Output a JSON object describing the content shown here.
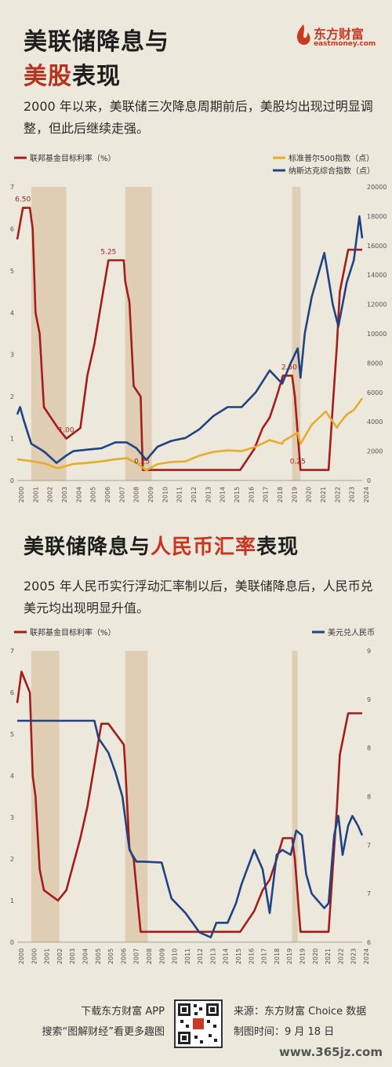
{
  "header": {
    "title_line1": "美联储降息与",
    "title_line2_red": "美股",
    "title_line2_rest": "表现",
    "brand_cn": "东方财富",
    "brand_en": "eastmoney.com",
    "brand_color": "#c83a24"
  },
  "section1": {
    "lead": "2000 年以来，美联储三次降息周期前后，美股均出现过明显调整，但此后继续走强。"
  },
  "section2": {
    "title_black1": "美联储降息与",
    "title_red": "人民币汇率",
    "title_black2": "表现",
    "lead": "2005 年人民币实行浮动汇率制以后，美联储降息后，人民币兑美元均出现明显升值。"
  },
  "footer": {
    "left1": "下载东方财富 APP",
    "left2": "搜索“图解财经”看更多趣图",
    "right1": "来源：东方财富 Choice 数据",
    "right2": "制图时间：9 月 18 日",
    "watermark": "www.365jz.com"
  },
  "chart_data": [
    {
      "type": "line",
      "colors": {
        "rate": "#a41c1c",
        "sp500": "#e4ad2c",
        "nasdaq": "#1f4383",
        "shade": "#d9c6a7"
      },
      "legend": {
        "left": "联邦基金目标利率（%）",
        "right1": "标准普尔500指数（点）",
        "right2": "纳斯达克综合指数（点）"
      },
      "x_ticks": [
        "2000",
        "2001",
        "2002",
        "2003",
        "2004",
        "2005",
        "2006",
        "2007",
        "2008",
        "2009",
        "2010",
        "2011",
        "2012",
        "2013",
        "2014",
        "2015",
        "2016",
        "2017",
        "2018",
        "2019",
        "2020",
        "2021",
        "2022",
        "2023",
        "2024"
      ],
      "y_left_ticks": [
        "0",
        "1",
        "2",
        "3",
        "4",
        "5",
        "6",
        "7"
      ],
      "y_right_ticks": [
        "0",
        "2000",
        "4000",
        "6000",
        "8000",
        "10000",
        "12000",
        "14000",
        "16000",
        "18000",
        "20000"
      ],
      "ylim_left": [
        0,
        7
      ],
      "ylim_right": [
        0,
        20000
      ],
      "shaded_periods": [
        [
          2001.0,
          2003.5
        ],
        [
          2007.7,
          2009.6
        ],
        [
          2019.6,
          2020.2
        ]
      ],
      "annotations": [
        {
          "x": 2000.4,
          "y": 6.5,
          "text": "6.50"
        },
        {
          "x": 2006.5,
          "y": 5.25,
          "text": "5.25"
        },
        {
          "x": 2003.5,
          "y": 1.0,
          "text": "1.00"
        },
        {
          "x": 2008.9,
          "y": 0.25,
          "text": "0.25"
        },
        {
          "x": 2019.4,
          "y": 2.5,
          "text": "2.50"
        },
        {
          "x": 2020.0,
          "y": 0.25,
          "text": "0.25"
        }
      ],
      "series": [
        {
          "name": "联邦基金目标利率（%）",
          "axis": "left",
          "x": [
            2000.0,
            2000.4,
            2000.9,
            2001.1,
            2001.3,
            2001.6,
            2001.9,
            2002.9,
            2003.5,
            2004.5,
            2005.0,
            2005.5,
            2006.0,
            2006.5,
            2007.6,
            2007.7,
            2008.0,
            2008.3,
            2008.8,
            2008.95,
            2015.9,
            2016.9,
            2017.5,
            2018.0,
            2018.5,
            2018.95,
            2019.6,
            2019.8,
            2020.2,
            2022.2,
            2022.5,
            2022.8,
            2023.0,
            2023.6,
            2024.6
          ],
          "y": [
            5.75,
            6.5,
            6.5,
            6.0,
            4.0,
            3.5,
            1.75,
            1.25,
            1.0,
            1.25,
            2.5,
            3.25,
            4.25,
            5.25,
            5.25,
            4.75,
            4.25,
            2.25,
            2.0,
            0.25,
            0.25,
            0.75,
            1.25,
            1.5,
            2.0,
            2.5,
            2.5,
            2.0,
            0.25,
            0.25,
            1.75,
            3.25,
            4.5,
            5.5,
            5.5
          ]
        },
        {
          "name": "标准普尔500指数（点）",
          "axis": "right",
          "x": [
            2000,
            2001,
            2002,
            2002.8,
            2003,
            2004,
            2005,
            2006,
            2007,
            2007.8,
            2008.5,
            2009.2,
            2010,
            2011,
            2012,
            2013,
            2014,
            2015,
            2016,
            2017,
            2018,
            2018.9,
            2019,
            2020,
            2020.2,
            2021,
            2022,
            2022.8,
            2023,
            2023.5,
            2024,
            2024.6
          ],
          "y": [
            1450,
            1320,
            1150,
            850,
            850,
            1130,
            1200,
            1300,
            1450,
            1520,
            1200,
            700,
            1120,
            1260,
            1300,
            1700,
            1950,
            2050,
            2000,
            2300,
            2750,
            2500,
            2700,
            3250,
            2500,
            3800,
            4700,
            3600,
            3900,
            4500,
            4800,
            5600
          ]
        },
        {
          "name": "纳斯达克综合指数（点）",
          "axis": "right",
          "x": [
            2000,
            2000.2,
            2000.5,
            2001,
            2001.7,
            2002,
            2002.8,
            2003,
            2003.5,
            2004,
            2005,
            2006,
            2007,
            2007.8,
            2008.5,
            2009.2,
            2010,
            2011,
            2012,
            2013,
            2014,
            2015,
            2016,
            2017,
            2018,
            2018.9,
            2019.5,
            2020,
            2020.2,
            2020.5,
            2021,
            2021.9,
            2022.5,
            2022.9,
            2023.5,
            2024,
            2024.4,
            2024.6
          ],
          "y": [
            4500,
            5000,
            4000,
            2500,
            2100,
            1900,
            1200,
            1350,
            1700,
            2000,
            2100,
            2200,
            2600,
            2600,
            2200,
            1400,
            2300,
            2700,
            2900,
            3500,
            4400,
            5000,
            5000,
            6000,
            7500,
            6600,
            8000,
            9000,
            7000,
            10000,
            12500,
            15500,
            12000,
            10500,
            13500,
            15000,
            18000,
            16500
          ]
        }
      ]
    },
    {
      "type": "line",
      "colors": {
        "rate": "#a41c1c",
        "usdcny": "#1f4383",
        "shade": "#d9c6a7"
      },
      "legend": {
        "left": "联邦基金目标利率（%）",
        "right": "美元兑人民币"
      },
      "x_ticks": [
        "2000",
        "2000",
        "2001",
        "2002",
        "2003",
        "2004",
        "2005",
        "2005",
        "2006",
        "2007",
        "2008",
        "2009",
        "2010",
        "2011",
        "2012",
        "2013",
        "2014",
        "2015",
        "2016",
        "2017",
        "2018",
        "2019",
        "2019",
        "2020",
        "2021",
        "2022",
        "2023",
        "2024"
      ],
      "y_left_ticks": [
        "0",
        "1",
        "2",
        "3",
        "4",
        "5",
        "6",
        "7"
      ],
      "y_right_ticks": [
        "6",
        "7",
        "7",
        "8",
        "8",
        "9",
        "9"
      ],
      "ylim_left": [
        0,
        7
      ],
      "ylim_right": [
        6,
        9
      ],
      "shaded_periods": [
        [
          2001.0,
          2003.0
        ],
        [
          2007.7,
          2009.3
        ],
        [
          2019.6,
          2020.0
        ]
      ],
      "series": [
        {
          "name": "联邦基金目标利率（%）",
          "axis": "left",
          "x": [
            2000.0,
            2000.3,
            2000.9,
            2001.1,
            2001.3,
            2001.6,
            2001.9,
            2002.9,
            2003.5,
            2004.5,
            2005.0,
            2005.5,
            2006.0,
            2006.5,
            2007.6,
            2007.7,
            2008.0,
            2008.3,
            2008.8,
            2008.95,
            2015.9,
            2016.9,
            2017.5,
            2018.0,
            2018.5,
            2018.95,
            2019.6,
            2019.8,
            2020.2,
            2022.2,
            2022.5,
            2022.8,
            2023.0,
            2023.6,
            2024.6
          ],
          "y": [
            5.75,
            6.5,
            6.0,
            4.0,
            3.5,
            1.75,
            1.25,
            1.0,
            1.25,
            2.5,
            3.25,
            4.25,
            5.25,
            5.25,
            4.75,
            4.25,
            2.25,
            2.0,
            0.25,
            0.25,
            0.25,
            0.75,
            1.25,
            1.5,
            2.0,
            2.5,
            2.5,
            2.0,
            0.25,
            0.25,
            1.75,
            3.25,
            4.5,
            5.5,
            5.5
          ]
        },
        {
          "name": "美元兑人民币",
          "axis": "right",
          "x": [
            2000,
            2005.5,
            2005.8,
            2006.5,
            2007,
            2007.5,
            2008.0,
            2008.5,
            2009,
            2010.3,
            2011,
            2012,
            2013,
            2013.8,
            2014.2,
            2015,
            2015.6,
            2016,
            2016.9,
            2017.5,
            2018.0,
            2018.5,
            2018.9,
            2019.5,
            2019.9,
            2020.3,
            2020.6,
            2021,
            2021.9,
            2022.2,
            2022.6,
            2022.9,
            2023.2,
            2023.6,
            2023.9,
            2024.3,
            2024.6
          ],
          "y": [
            8.28,
            8.28,
            8.1,
            7.95,
            7.75,
            7.5,
            6.95,
            6.83,
            6.83,
            6.82,
            6.45,
            6.3,
            6.1,
            6.05,
            6.2,
            6.2,
            6.4,
            6.6,
            6.95,
            6.75,
            6.3,
            6.9,
            6.95,
            6.9,
            7.15,
            7.1,
            6.7,
            6.5,
            6.35,
            6.4,
            7.1,
            7.3,
            6.9,
            7.2,
            7.3,
            7.2,
            7.1
          ]
        }
      ]
    }
  ]
}
